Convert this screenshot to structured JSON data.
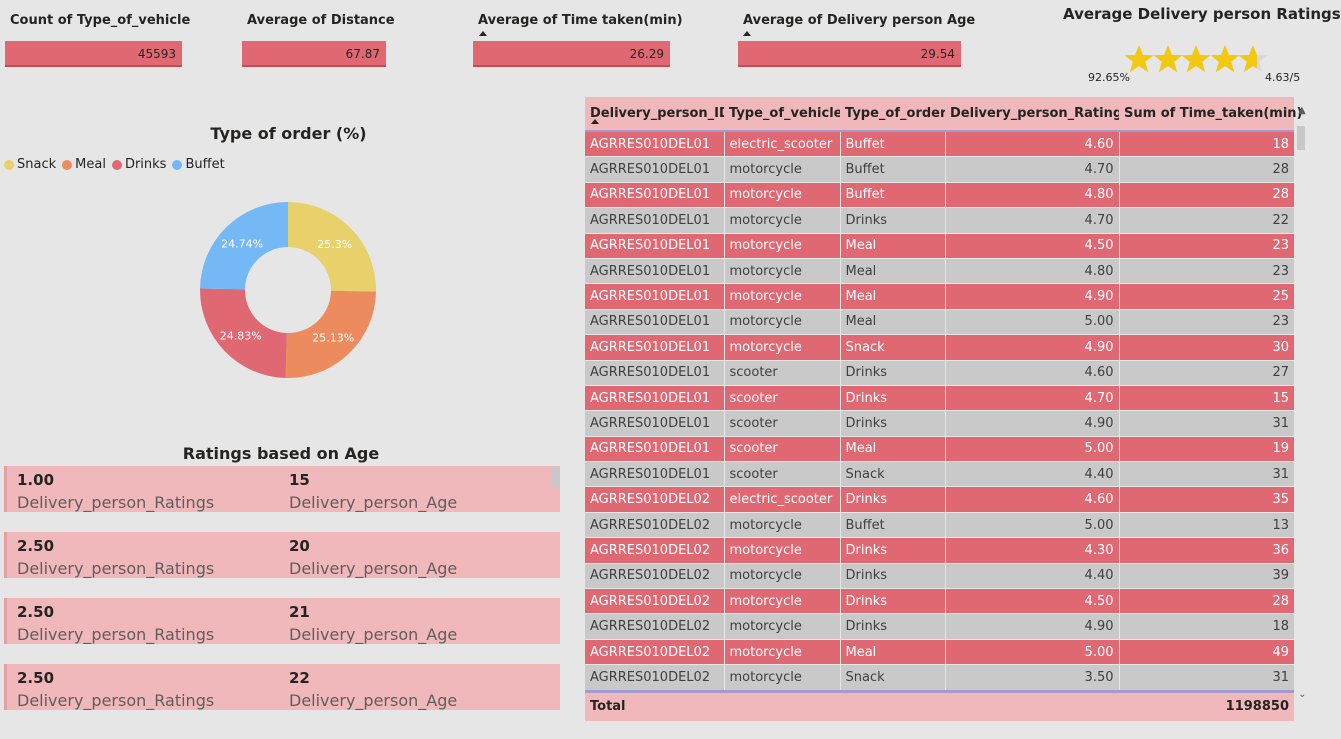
{
  "kpis": [
    {
      "title": "Count of Type_of_vehicle",
      "value": "45593"
    },
    {
      "title": "Average of Distance",
      "value": "67.87"
    },
    {
      "title": "Average of Time taken(min)",
      "value": "26.29"
    },
    {
      "title": "Average of Delivery person Age",
      "value": "29.54"
    }
  ],
  "rating_card": {
    "title": "Average Delivery person Ratings",
    "percent": "92.65%",
    "score": "4.63/5",
    "stars_filled": 4.63,
    "star_color": "#f2c811"
  },
  "donut": {
    "title": "Type of order (%)",
    "legend": [
      "Snack",
      "Meal",
      "Drinks",
      "Buffet"
    ]
  },
  "chart_data": {
    "type": "pie",
    "title": "Type of order (%)",
    "categories": [
      "Snack",
      "Meal",
      "Drinks",
      "Buffet"
    ],
    "values": [
      25.3,
      25.13,
      24.83,
      24.74
    ],
    "labels": [
      "25.3%",
      "25.13%",
      "24.83%",
      "24.74%"
    ],
    "colors": [
      "#e8d06a",
      "#ec8c5e",
      "#e06873",
      "#74b8f5"
    ],
    "donut": true
  },
  "age_cards": {
    "title": "Ratings based on Age",
    "rating_label": "Delivery_person_Ratings",
    "age_label": "Delivery_person_Age",
    "items": [
      {
        "rating": "1.00",
        "age": "15"
      },
      {
        "rating": "2.50",
        "age": "20"
      },
      {
        "rating": "2.50",
        "age": "21"
      },
      {
        "rating": "2.50",
        "age": "22"
      }
    ]
  },
  "table": {
    "columns": [
      "Delivery_person_ID",
      "Type_of_vehicle",
      "Type_of_order",
      "Delivery_person_Ratings",
      "Sum of Time_taken(min)"
    ],
    "rows": [
      [
        "AGRRES010DEL01",
        "electric_scooter",
        "Buffet",
        "4.60",
        "18"
      ],
      [
        "AGRRES010DEL01",
        "motorcycle",
        "Buffet",
        "4.70",
        "28"
      ],
      [
        "AGRRES010DEL01",
        "motorcycle",
        "Buffet",
        "4.80",
        "28"
      ],
      [
        "AGRRES010DEL01",
        "motorcycle",
        "Drinks",
        "4.70",
        "22"
      ],
      [
        "AGRRES010DEL01",
        "motorcycle",
        "Meal",
        "4.50",
        "23"
      ],
      [
        "AGRRES010DEL01",
        "motorcycle",
        "Meal",
        "4.80",
        "23"
      ],
      [
        "AGRRES010DEL01",
        "motorcycle",
        "Meal",
        "4.90",
        "25"
      ],
      [
        "AGRRES010DEL01",
        "motorcycle",
        "Meal",
        "5.00",
        "23"
      ],
      [
        "AGRRES010DEL01",
        "motorcycle",
        "Snack",
        "4.90",
        "30"
      ],
      [
        "AGRRES010DEL01",
        "scooter",
        "Drinks",
        "4.60",
        "27"
      ],
      [
        "AGRRES010DEL01",
        "scooter",
        "Drinks",
        "4.70",
        "15"
      ],
      [
        "AGRRES010DEL01",
        "scooter",
        "Drinks",
        "4.90",
        "31"
      ],
      [
        "AGRRES010DEL01",
        "scooter",
        "Meal",
        "5.00",
        "19"
      ],
      [
        "AGRRES010DEL01",
        "scooter",
        "Snack",
        "4.40",
        "31"
      ],
      [
        "AGRRES010DEL02",
        "electric_scooter",
        "Drinks",
        "4.60",
        "35"
      ],
      [
        "AGRRES010DEL02",
        "motorcycle",
        "Buffet",
        "5.00",
        "13"
      ],
      [
        "AGRRES010DEL02",
        "motorcycle",
        "Drinks",
        "4.30",
        "36"
      ],
      [
        "AGRRES010DEL02",
        "motorcycle",
        "Drinks",
        "4.40",
        "39"
      ],
      [
        "AGRRES010DEL02",
        "motorcycle",
        "Drinks",
        "4.50",
        "28"
      ],
      [
        "AGRRES010DEL02",
        "motorcycle",
        "Drinks",
        "4.90",
        "18"
      ],
      [
        "AGRRES010DEL02",
        "motorcycle",
        "Meal",
        "5.00",
        "49"
      ],
      [
        "AGRRES010DEL02",
        "motorcycle",
        "Snack",
        "3.50",
        "31"
      ]
    ],
    "total_label": "Total",
    "total_value": "1198850"
  }
}
